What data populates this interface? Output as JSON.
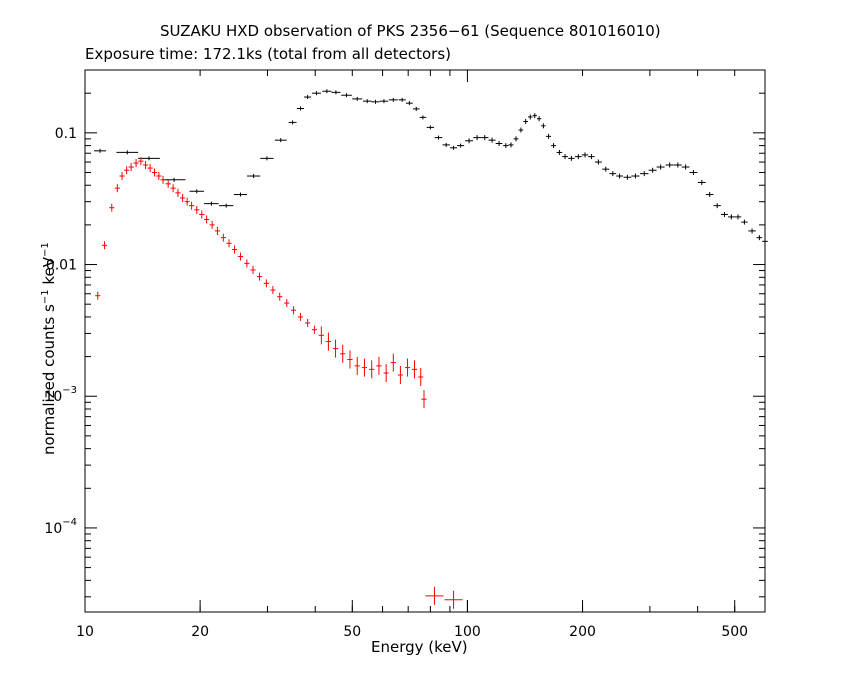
{
  "chart_data": {
    "type": "scatter",
    "title": "SUZAKU HXD observation of PKS 2356−61 (Sequence 801016010)",
    "subtitle": "Exposure time: 172.1ks (total from all detectors)",
    "xlabel": "Energy (keV)",
    "ylabel": {
      "text": "normalized counts s",
      "exp1": "−1",
      "mid": " keV",
      "exp2": "−1"
    },
    "x_scale": "log",
    "y_scale": "log",
    "xlim": [
      10,
      600
    ],
    "ylim": [
      2.3e-05,
      0.3
    ],
    "x_ticks": [
      {
        "value": 10,
        "label": "10"
      },
      {
        "value": 20,
        "label": "20"
      },
      {
        "value": 50,
        "label": "50"
      },
      {
        "value": 100,
        "label": "100"
      },
      {
        "value": 200,
        "label": "200"
      },
      {
        "value": 500,
        "label": "500"
      }
    ],
    "y_ticks": [
      {
        "value": 0.0001,
        "base": "10",
        "exp": "−4"
      },
      {
        "value": 0.001,
        "base": "10",
        "exp": "−3"
      },
      {
        "value": 0.01,
        "base": "0.01",
        "exp": ""
      },
      {
        "value": 0.1,
        "base": "0.1",
        "exp": ""
      }
    ],
    "series": [
      {
        "color": "#000000",
        "style": "binned",
        "points": [
          [
            10.95,
            0.073
          ],
          [
            12.9,
            0.071
          ],
          [
            14.7,
            0.064
          ],
          [
            17.1,
            0.044
          ],
          [
            19.6,
            0.036
          ],
          [
            21.4,
            0.029
          ],
          [
            23.4,
            0.028
          ],
          [
            25.5,
            0.034
          ],
          [
            27.6,
            0.047
          ],
          [
            29.9,
            0.064
          ],
          [
            32.5,
            0.088
          ],
          [
            34.9,
            0.12
          ],
          [
            36.6,
            0.153
          ],
          [
            38.2,
            0.187
          ],
          [
            40.3,
            0.2
          ],
          [
            42.9,
            0.207
          ],
          [
            45.3,
            0.203
          ],
          [
            48.3,
            0.193
          ],
          [
            51.5,
            0.181
          ],
          [
            54.7,
            0.174
          ],
          [
            57.5,
            0.172
          ],
          [
            60.5,
            0.174
          ],
          [
            64,
            0.178
          ],
          [
            67.5,
            0.178
          ],
          [
            70.5,
            0.168
          ],
          [
            73.5,
            0.152
          ],
          [
            76.5,
            0.131
          ],
          [
            80,
            0.11
          ],
          [
            84,
            0.092
          ],
          [
            88,
            0.081
          ],
          [
            92,
            0.077
          ],
          [
            96,
            0.08
          ],
          [
            101,
            0.087
          ],
          [
            106,
            0.092
          ],
          [
            111,
            0.092
          ],
          [
            116,
            0.088
          ],
          [
            121,
            0.083
          ],
          [
            126,
            0.08
          ],
          [
            130,
            0.081
          ],
          [
            134,
            0.09
          ],
          [
            138,
            0.105
          ],
          [
            142,
            0.122
          ],
          [
            146,
            0.132
          ],
          [
            150,
            0.135
          ],
          [
            154,
            0.128
          ],
          [
            158,
            0.113
          ],
          [
            163,
            0.094
          ],
          [
            168,
            0.08
          ],
          [
            174,
            0.071
          ],
          [
            180,
            0.066
          ],
          [
            187,
            0.064
          ],
          [
            195,
            0.066
          ],
          [
            203,
            0.068
          ],
          [
            211,
            0.066
          ],
          [
            220,
            0.06
          ],
          [
            230,
            0.053
          ],
          [
            240,
            0.049
          ],
          [
            250,
            0.047
          ],
          [
            262,
            0.046
          ],
          [
            275,
            0.047
          ],
          [
            290,
            0.049
          ],
          [
            305,
            0.052
          ],
          [
            320,
            0.055
          ],
          [
            338,
            0.057
          ],
          [
            355,
            0.057
          ],
          [
            372,
            0.055
          ],
          [
            390,
            0.05
          ],
          [
            410,
            0.042
          ],
          [
            430,
            0.034
          ],
          [
            450,
            0.028
          ],
          [
            470,
            0.024
          ],
          [
            490,
            0.023
          ],
          [
            510,
            0.023
          ],
          [
            530,
            0.021
          ],
          [
            555,
            0.018
          ],
          [
            580,
            0.016
          ],
          [
            600,
            0.015
          ]
        ]
      },
      {
        "color": "#ff0000",
        "style": "crosses",
        "points": [
          [
            10.8,
            0.0058
          ],
          [
            11.25,
            0.014
          ],
          [
            11.75,
            0.027
          ],
          [
            12.15,
            0.038
          ],
          [
            12.5,
            0.047
          ],
          [
            12.85,
            0.052
          ],
          [
            13.2,
            0.055
          ],
          [
            13.6,
            0.059
          ],
          [
            14,
            0.061
          ],
          [
            14.4,
            0.057
          ],
          [
            14.8,
            0.054
          ],
          [
            15.2,
            0.05
          ],
          [
            15.6,
            0.047
          ],
          [
            16,
            0.044
          ],
          [
            16.5,
            0.041
          ],
          [
            17,
            0.038
          ],
          [
            17.5,
            0.035
          ],
          [
            18,
            0.032
          ],
          [
            18.5,
            0.03
          ],
          [
            19,
            0.028
          ],
          [
            19.6,
            0.026
          ],
          [
            20.2,
            0.024
          ],
          [
            20.8,
            0.022
          ],
          [
            21.5,
            0.02
          ],
          [
            22.2,
            0.018
          ],
          [
            23,
            0.016
          ],
          [
            23.8,
            0.0145
          ],
          [
            24.6,
            0.013
          ],
          [
            25.5,
            0.0115
          ],
          [
            26.5,
            0.0102
          ],
          [
            27.5,
            0.0091
          ],
          [
            28.6,
            0.0081
          ],
          [
            29.8,
            0.0072
          ],
          [
            31,
            0.0064
          ],
          [
            32.3,
            0.0057
          ],
          [
            33.7,
            0.0051
          ],
          [
            35.1,
            0.0045
          ],
          [
            36.6,
            0.004
          ],
          [
            38.2,
            0.0036
          ],
          [
            39.8,
            0.0032
          ],
          [
            41.5,
            0.0029
          ],
          [
            43.3,
            0.0026
          ],
          [
            45.2,
            0.0023
          ],
          [
            47.2,
            0.0021
          ],
          [
            49.3,
            0.0019
          ],
          [
            51.5,
            0.0017
          ],
          [
            53.8,
            0.00165
          ],
          [
            56.2,
            0.0016
          ],
          [
            58.7,
            0.0017
          ],
          [
            61.3,
            0.0015
          ],
          [
            64,
            0.0018
          ],
          [
            66.8,
            0.00145
          ],
          [
            69.7,
            0.00165
          ],
          [
            72.7,
            0.0016
          ],
          [
            75.5,
            0.0014
          ],
          [
            77,
            0.00095
          ],
          [
            82,
            3.05e-05
          ],
          [
            92,
            2.85e-05
          ]
        ]
      }
    ],
    "legend": "none",
    "grid": false
  }
}
